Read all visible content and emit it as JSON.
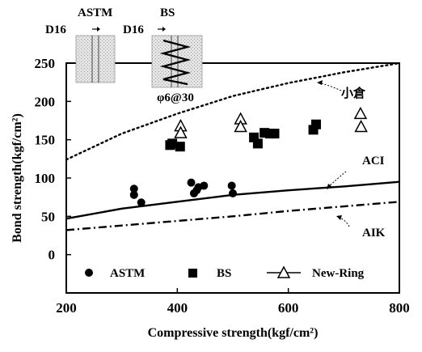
{
  "chart_data": {
    "type": "scatter",
    "xlabel": "Compressive strength(kgf/cm²)",
    "ylabel": "Bond strength(kgf/cm²)",
    "xlim": [
      200,
      800
    ],
    "ylim": [
      -50,
      250
    ],
    "x_ticks": [
      "200",
      "400",
      "600",
      "800"
    ],
    "y_ticks": [
      "0",
      "50",
      "100",
      "150",
      "200",
      "250"
    ],
    "grid": false,
    "legend_position": "bottom",
    "series": [
      {
        "name": "ASTM",
        "marker": "circle",
        "points": [
          [
            322,
            86
          ],
          [
            322,
            78
          ],
          [
            335,
            68
          ],
          [
            425,
            94
          ],
          [
            430,
            80
          ],
          [
            435,
            84
          ],
          [
            438,
            88
          ],
          [
            448,
            90
          ],
          [
            498,
            90
          ],
          [
            500,
            80
          ]
        ]
      },
      {
        "name": "BS",
        "marker": "square",
        "points": [
          [
            387,
            143
          ],
          [
            391,
            145
          ],
          [
            405,
            141
          ],
          [
            538,
            153
          ],
          [
            545,
            145
          ],
          [
            557,
            159
          ],
          [
            567,
            158
          ],
          [
            575,
            158
          ],
          [
            645,
            163
          ],
          [
            650,
            170
          ]
        ]
      },
      {
        "name": "New-Ring",
        "marker": "open-triangle",
        "points": [
          [
            406,
            167
          ],
          [
            406,
            158
          ],
          [
            514,
            176
          ],
          [
            514,
            166
          ],
          [
            730,
            183
          ],
          [
            731,
            166
          ]
        ]
      }
    ],
    "curves": [
      {
        "label": "小倉",
        "style": "dotted",
        "points": [
          [
            200,
            124
          ],
          [
            300,
            158
          ],
          [
            400,
            184
          ],
          [
            500,
            207
          ],
          [
            600,
            224
          ],
          [
            700,
            238
          ],
          [
            800,
            250
          ]
        ]
      },
      {
        "label": "ACI",
        "style": "solid",
        "points": [
          [
            200,
            47
          ],
          [
            300,
            60
          ],
          [
            400,
            69
          ],
          [
            500,
            78
          ],
          [
            600,
            84
          ],
          [
            700,
            89
          ],
          [
            800,
            95
          ]
        ]
      },
      {
        "label": "AIK",
        "style": "dashdot",
        "points": [
          [
            200,
            32
          ],
          [
            300,
            38
          ],
          [
            400,
            44
          ],
          [
            500,
            50
          ],
          [
            600,
            57
          ],
          [
            700,
            63
          ],
          [
            800,
            69
          ]
        ]
      }
    ],
    "annotations": [
      "小倉",
      "ACI",
      "AIK"
    ]
  },
  "inset": {
    "label_astm": "ASTM",
    "label_bs": "BS",
    "label_d16_left": "D16",
    "label_d16_right": "D16",
    "label_stirrup": "φ6@30"
  }
}
